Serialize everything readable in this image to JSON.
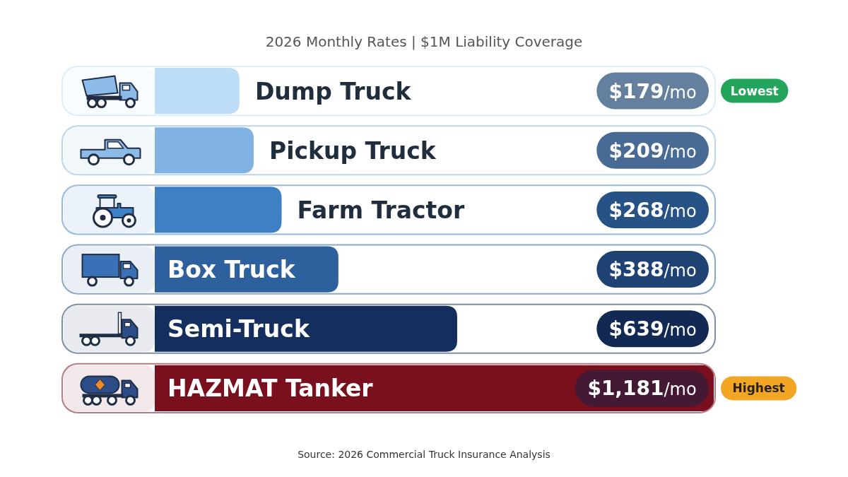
{
  "chart_data": {
    "type": "bar",
    "orientation": "horizontal",
    "title": "2026 Monthly Rates | $1M Liability Coverage",
    "categories": [
      "Dump Truck",
      "Pickup Truck",
      "Farm Tractor",
      "Box Truck",
      "Semi-Truck",
      "HAZMAT Tanker"
    ],
    "values": [
      179,
      209,
      268,
      388,
      639,
      1181
    ],
    "colors": [
      "#bddcf5",
      "#80b3e3",
      "#3f80c4",
      "#2f609e",
      "#142f5e",
      "#7a0f1e"
    ],
    "value_labels": [
      "$179/mo",
      "$209/mo",
      "$268/mo",
      "$388/mo",
      "$639/mo",
      "$1,181/mo"
    ],
    "annotations": [
      "Lowest",
      "Highest",
      "Source: 2026 Commercial Truck Insurance Analysis"
    ],
    "tick_labels": "y"
  }
}
